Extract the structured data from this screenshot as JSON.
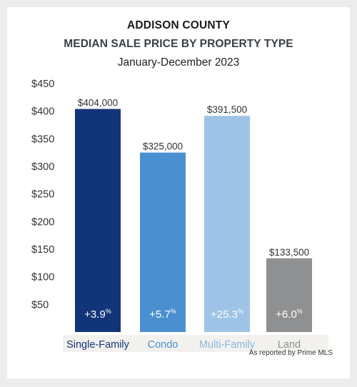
{
  "chart_data": {
    "type": "bar",
    "title": "ADDISON COUNTY",
    "subtitle": "MEDIAN SALE PRICE BY PROPERTY TYPE",
    "period": "January-December 2023",
    "categories": [
      "Single-Family",
      "Condo",
      "Multi-Family",
      "Land"
    ],
    "values": [
      404000,
      325000,
      391500,
      133500
    ],
    "value_labels": [
      "$404,000",
      "$325,000",
      "$391,500",
      "$133,500"
    ],
    "change_values": [
      "+3.9",
      "+5.7",
      "+25.3",
      "+6.0"
    ],
    "change_unit": "%",
    "colors": [
      "#12357a",
      "#4a90d0",
      "#9ec3e6",
      "#8f9092"
    ],
    "category_label_colors": [
      "#12357a",
      "#4a90d0",
      "#8ab4de",
      "#8f9092"
    ],
    "y_ticks": [
      {
        "value": 50,
        "label": "$50"
      },
      {
        "value": 100,
        "label": "$100"
      },
      {
        "value": 150,
        "label": "$150"
      },
      {
        "value": 200,
        "label": "$200"
      },
      {
        "value": 250,
        "label": "$250"
      },
      {
        "value": 300,
        "label": "$300"
      },
      {
        "value": 350,
        "label": "$350"
      },
      {
        "value": 400,
        "label": "$400"
      },
      {
        "value": 450,
        "label": "$450"
      }
    ],
    "ylim": [
      0,
      450
    ],
    "y_unit_scale": 1000,
    "grid": false,
    "source_note": "As reported by Prime MLS"
  }
}
